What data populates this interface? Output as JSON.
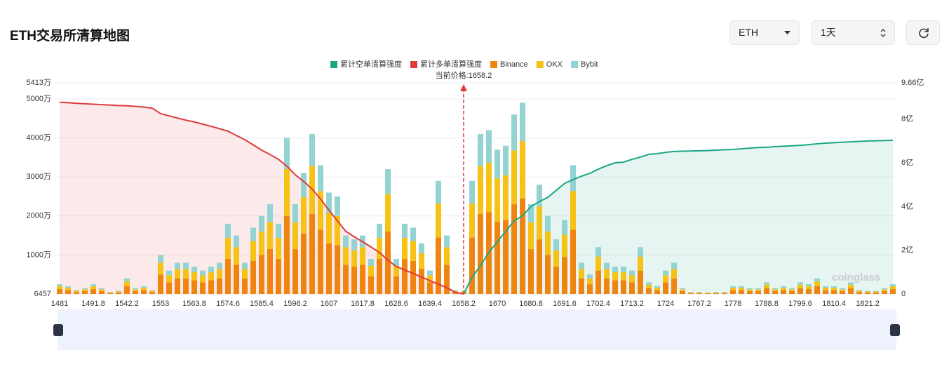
{
  "header": {
    "title": "ETH交易所清算地图",
    "symbol_select": "ETH",
    "interval_select": "1天"
  },
  "chart_data": {
    "type": "bar",
    "watermark": "coinglass",
    "annotation": "当前价格:1658.2",
    "categories": [
      "1481",
      null,
      null,
      null,
      "1491.8",
      null,
      null,
      null,
      "1542.2",
      null,
      null,
      null,
      "1553",
      null,
      null,
      null,
      "1563.8",
      null,
      null,
      null,
      "1574.6",
      null,
      null,
      null,
      "1585.4",
      null,
      null,
      null,
      "1596.2",
      null,
      null,
      null,
      "1607",
      null,
      null,
      null,
      "1617.8",
      null,
      null,
      null,
      "1628.6",
      null,
      null,
      null,
      "1639.4",
      null,
      null,
      null,
      "1658.2",
      null,
      null,
      null,
      "1670",
      null,
      null,
      null,
      "1680.8",
      null,
      null,
      null,
      "1691.6",
      null,
      null,
      null,
      "1702.4",
      null,
      null,
      null,
      "1713.2",
      null,
      null,
      null,
      "1724",
      null,
      null,
      null,
      "1767.2",
      null,
      null,
      null,
      "1778",
      null,
      null,
      null,
      "1788.8",
      null,
      null,
      null,
      "1799.6",
      null,
      null,
      null,
      "1810.4",
      null,
      null,
      null,
      "1821.2",
      null,
      null,
      null
    ],
    "ylim": [
      0.6457,
      5413
    ],
    "yticks": [
      {
        "value": 0.6457,
        "label": "6457"
      },
      {
        "value": 1000,
        "label": "1000万"
      },
      {
        "value": 2000,
        "label": "2000万"
      },
      {
        "value": 3000,
        "label": "3000万"
      },
      {
        "value": 4000,
        "label": "4000万"
      },
      {
        "value": 5000,
        "label": "5000万"
      },
      {
        "value": 5413,
        "label": "5413万"
      }
    ],
    "y2lim": [
      0,
      9.66
    ],
    "y2ticks": [
      0,
      {
        "value": 2,
        "label": "2亿"
      },
      {
        "value": 4,
        "label": "4亿"
      },
      {
        "value": 6,
        "label": "6亿"
      },
      {
        "value": 8,
        "label": "8亿"
      },
      {
        "value": 9.66,
        "label": "9.66亿"
      }
    ],
    "grid": true,
    "series": [
      {
        "name": "累计空单清算强度",
        "type": "line",
        "axis": "y2",
        "color": "#1ba784",
        "area": "rgba(27,167,132,0.11)",
        "values": [
          null,
          null,
          null,
          null,
          null,
          null,
          null,
          null,
          null,
          null,
          null,
          null,
          null,
          null,
          null,
          null,
          null,
          null,
          null,
          null,
          null,
          null,
          null,
          null,
          null,
          null,
          null,
          null,
          null,
          null,
          null,
          null,
          null,
          null,
          null,
          null,
          null,
          null,
          null,
          null,
          null,
          null,
          null,
          null,
          null,
          null,
          null,
          null,
          0,
          0.77,
          1.3,
          1.9,
          2.39,
          2.87,
          3.35,
          3.58,
          4.0,
          4.23,
          4.42,
          4.74,
          5.06,
          5.23,
          5.39,
          5.52,
          5.71,
          5.87,
          6.0,
          6.03,
          6.16,
          6.26,
          6.39,
          6.42,
          6.48,
          6.52,
          6.53,
          6.54,
          6.55,
          6.56,
          6.58,
          6.6,
          6.61,
          6.64,
          6.67,
          6.7,
          6.71,
          6.74,
          6.76,
          6.78,
          6.8,
          6.83,
          6.87,
          6.9,
          6.92,
          6.94,
          6.96,
          6.98,
          7.0,
          7.01,
          7.02,
          7.03
        ]
      },
      {
        "name": "累计多单清算强度",
        "type": "line",
        "axis": "y2",
        "color": "#e03a3e",
        "area": "rgba(224,58,62,0.11)",
        "values": [
          8.77,
          8.75,
          8.72,
          8.7,
          8.68,
          8.66,
          8.64,
          8.62,
          8.61,
          8.58,
          8.55,
          8.5,
          8.25,
          8.15,
          8.05,
          7.95,
          7.87,
          7.77,
          7.67,
          7.56,
          7.45,
          7.25,
          7.06,
          6.82,
          6.58,
          6.38,
          6.16,
          5.85,
          5.45,
          5.15,
          4.8,
          4.35,
          3.84,
          3.35,
          2.87,
          2.62,
          2.39,
          2.15,
          1.9,
          1.55,
          1.26,
          1.1,
          0.94,
          0.78,
          0.61,
          0.45,
          0.29,
          0.08,
          0,
          null,
          null,
          null,
          null,
          null,
          null,
          null,
          null,
          null,
          null,
          null,
          null,
          null,
          null,
          null,
          null,
          null,
          null,
          null,
          null,
          null,
          null,
          null,
          null,
          null,
          null,
          null,
          null,
          null,
          null,
          null,
          null,
          null,
          null,
          null,
          null,
          null,
          null,
          null,
          null,
          null,
          null,
          null,
          null,
          null,
          null,
          null,
          null,
          null,
          null,
          null
        ]
      },
      {
        "name": "Binance",
        "type": "bar",
        "color": "#ef8410",
        "values": [
          125,
          100,
          50,
          75,
          125,
          75,
          25,
          40,
          200,
          75,
          100,
          50,
          500,
          300,
          400,
          400,
          350,
          300,
          350,
          400,
          900,
          750,
          400,
          850,
          1000,
          1150,
          900,
          2000,
          1150,
          1550,
          2050,
          1650,
          1300,
          1250,
          750,
          700,
          750,
          450,
          900,
          1600,
          450,
          900,
          850,
          650,
          300,
          1450,
          750,
          50,
          40,
          1450,
          2050,
          2100,
          1850,
          1900,
          2300,
          2450,
          1150,
          1400,
          1000,
          700,
          950,
          1650,
          400,
          250,
          600,
          400,
          350,
          350,
          300,
          600,
          150,
          100,
          300,
          400,
          75,
          25,
          25,
          20,
          25,
          25,
          100,
          100,
          75,
          75,
          150,
          75,
          100,
          75,
          150,
          125,
          200,
          100,
          100,
          75,
          150,
          50,
          40,
          40,
          75,
          125
        ]
      },
      {
        "name": "OKX",
        "type": "bar",
        "color": "#f5c215",
        "values": [
          75,
          60,
          30,
          45,
          75,
          45,
          15,
          24,
          120,
          45,
          60,
          30,
          300,
          180,
          240,
          240,
          210,
          180,
          210,
          240,
          540,
          450,
          240,
          510,
          600,
          690,
          540,
          1200,
          690,
          930,
          1230,
          990,
          780,
          750,
          450,
          420,
          450,
          270,
          540,
          960,
          270,
          540,
          510,
          390,
          180,
          870,
          450,
          30,
          24,
          870,
          1230,
          1260,
          1110,
          1140,
          1380,
          1470,
          690,
          840,
          600,
          420,
          570,
          990,
          240,
          150,
          360,
          240,
          210,
          210,
          180,
          360,
          90,
          60,
          180,
          240,
          45,
          15,
          15,
          12,
          15,
          15,
          60,
          60,
          45,
          45,
          90,
          45,
          60,
          45,
          90,
          75,
          120,
          60,
          60,
          45,
          90,
          30,
          24,
          24,
          45,
          75
        ]
      },
      {
        "name": "Bybit",
        "type": "bar",
        "color": "#93d4d3",
        "values": [
          50,
          40,
          20,
          30,
          50,
          30,
          10,
          16,
          80,
          30,
          40,
          20,
          200,
          120,
          160,
          160,
          140,
          120,
          140,
          160,
          360,
          300,
          160,
          340,
          400,
          460,
          360,
          800,
          460,
          620,
          820,
          660,
          520,
          500,
          300,
          280,
          300,
          180,
          360,
          640,
          180,
          360,
          340,
          260,
          120,
          580,
          300,
          20,
          16,
          580,
          820,
          840,
          740,
          760,
          920,
          980,
          460,
          560,
          400,
          280,
          380,
          660,
          160,
          100,
          240,
          160,
          140,
          140,
          120,
          240,
          60,
          40,
          120,
          160,
          30,
          10,
          10,
          8,
          10,
          10,
          40,
          40,
          30,
          30,
          60,
          30,
          40,
          30,
          60,
          50,
          80,
          40,
          40,
          30,
          60,
          20,
          16,
          16,
          30,
          50
        ]
      }
    ]
  }
}
